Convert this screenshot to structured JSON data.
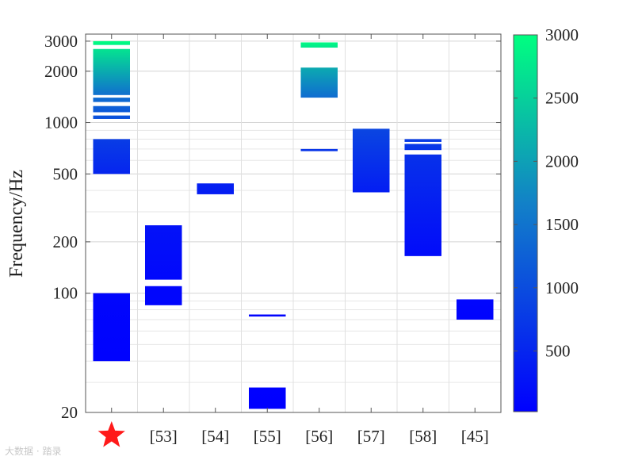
{
  "chart_data": {
    "type": "bar",
    "orientation": "vertical-range",
    "ylabel": "Frequency/Hz",
    "xlabel": "",
    "title": "",
    "yscale": "log",
    "ylim": [
      20,
      3300
    ],
    "yticks": [
      20,
      100,
      200,
      500,
      1000,
      2000,
      3000
    ],
    "grid": true,
    "categories": [
      "★",
      "[53]",
      "[54]",
      "[55]",
      "[56]",
      "[57]",
      "[58]",
      "[45]"
    ],
    "bars": [
      {
        "category": "★",
        "ranges": [
          [
            40,
            100
          ],
          [
            500,
            800
          ],
          [
            1050,
            1100
          ],
          [
            1150,
            1250
          ],
          [
            1320,
            1400
          ],
          [
            1450,
            2700
          ],
          [
            2850,
            3000
          ]
        ]
      },
      {
        "category": "[53]",
        "ranges": [
          [
            85,
            110
          ],
          [
            120,
            250
          ]
        ]
      },
      {
        "category": "[54]",
        "ranges": [
          [
            380,
            440
          ]
        ]
      },
      {
        "category": "[55]",
        "ranges": [
          [
            21,
            28
          ],
          [
            73,
            75
          ]
        ]
      },
      {
        "category": "[56]",
        "ranges": [
          [
            680,
            700
          ],
          [
            1400,
            2100
          ],
          [
            2750,
            2950
          ]
        ]
      },
      {
        "category": "[57]",
        "ranges": [
          [
            390,
            920
          ]
        ]
      },
      {
        "category": "[58]",
        "ranges": [
          [
            165,
            650
          ],
          [
            690,
            750
          ],
          [
            770,
            800
          ]
        ]
      },
      {
        "category": "[45]",
        "ranges": [
          [
            70,
            92
          ]
        ]
      }
    ],
    "colorbar": {
      "label": "",
      "min": 20,
      "max": 3000,
      "ticks": [
        500,
        1000,
        1500,
        2000,
        2500,
        3000
      ],
      "colors": [
        "#0000ff",
        "#1280c8",
        "#00ff80"
      ]
    }
  },
  "watermark_text": "大数据 · 踏录"
}
